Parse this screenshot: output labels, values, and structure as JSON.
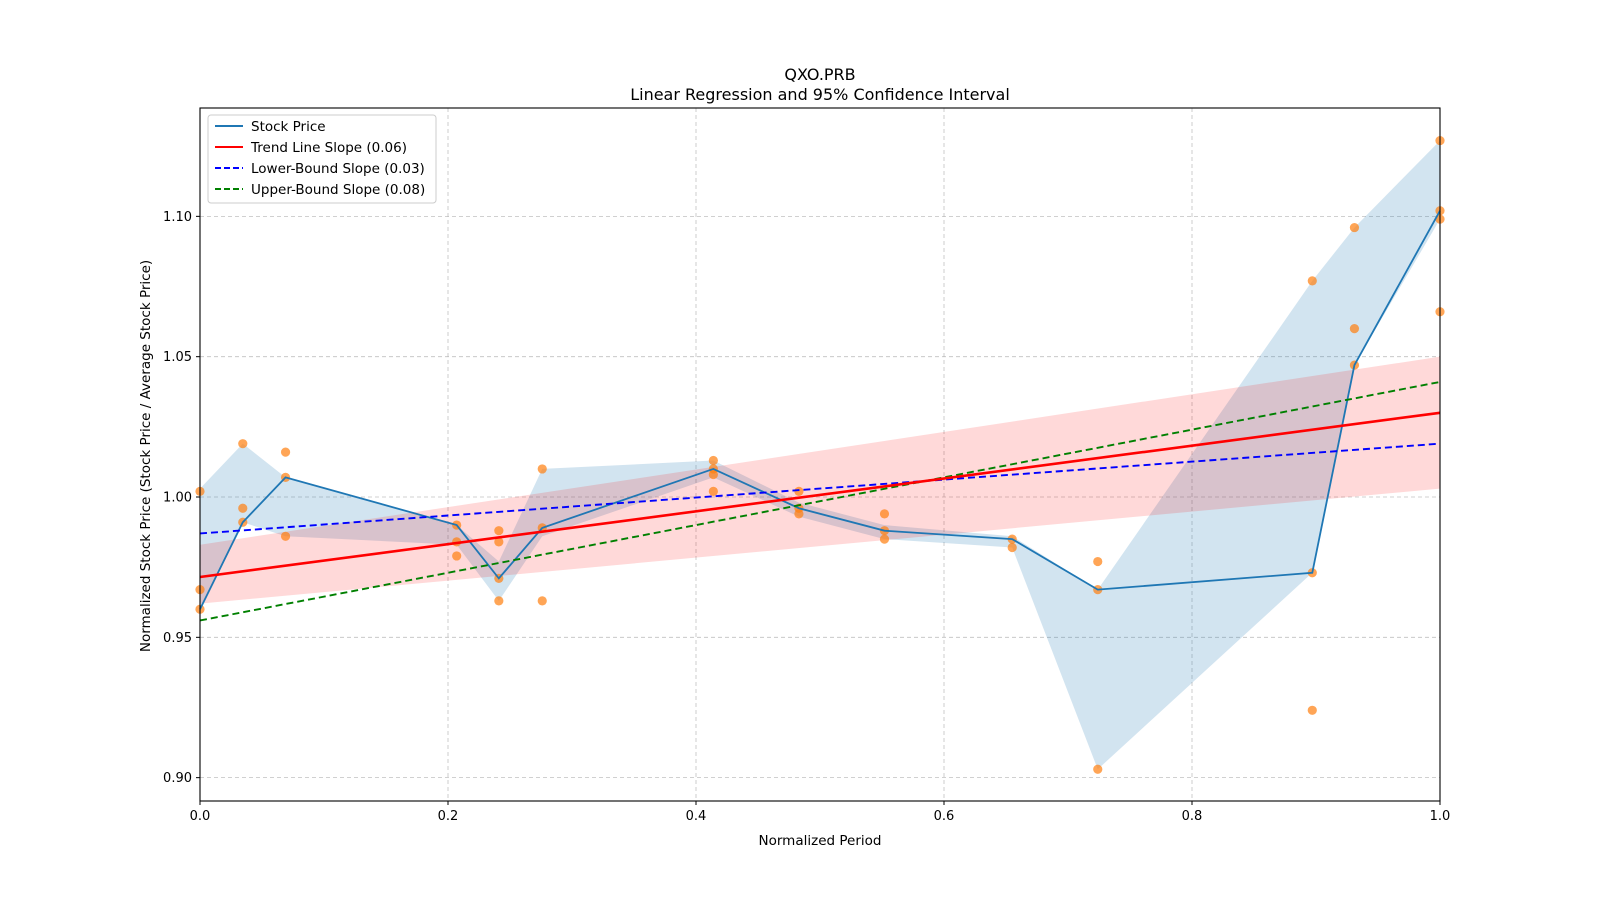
{
  "chart_data": {
    "type": "line",
    "title": "QXO.PRB",
    "subtitle": "Linear Regression and 95% Confidence Interval",
    "xlabel": "Normalized Period",
    "ylabel": "Normalized Stock Price (Stock Price / Average Stock Price)",
    "xlim": [
      0.0,
      1.0
    ],
    "ylim": [
      0.892,
      1.138
    ],
    "xticks": [
      0.0,
      0.2,
      0.4,
      0.6,
      0.8,
      1.0
    ],
    "xtick_labels": [
      "0.0",
      "0.2",
      "0.4",
      "0.6",
      "0.8",
      "1.0"
    ],
    "yticks": [
      0.9,
      0.95,
      1.0,
      1.05,
      1.1
    ],
    "ytick_labels": [
      "0.90",
      "0.95",
      "1.00",
      "1.05",
      "1.10"
    ],
    "grid": true,
    "legend_position": "top-left",
    "legend": [
      {
        "label": "Stock Price",
        "color": "#1f77b4",
        "style": "solid"
      },
      {
        "label": "Trend Line Slope (0.06)",
        "color": "#ff0000",
        "style": "solid"
      },
      {
        "label": "Lower-Bound Slope (0.03)",
        "color": "#0000ff",
        "style": "dashed"
      },
      {
        "label": "Upper-Bound Slope (0.08)",
        "color": "#008000",
        "style": "dashed"
      }
    ],
    "stock_price_line": {
      "x": [
        0.0,
        0.0345,
        0.069,
        0.207,
        0.241,
        0.276,
        0.414,
        0.483,
        0.552,
        0.655,
        0.724,
        0.897,
        0.931,
        1.0
      ],
      "y": [
        0.96,
        0.991,
        1.007,
        0.99,
        0.971,
        0.989,
        1.01,
        0.996,
        0.988,
        0.985,
        0.967,
        0.973,
        1.047,
        1.102
      ],
      "color": "#1f77b4"
    },
    "stock_price_band": {
      "x": [
        0.0,
        0.0345,
        0.069,
        0.207,
        0.241,
        0.276,
        0.414,
        0.483,
        0.552,
        0.655,
        0.724,
        0.897,
        0.931,
        1.0
      ],
      "lower": [
        0.96,
        0.991,
        0.986,
        0.983,
        0.963,
        0.986,
        1.007,
        0.993,
        0.985,
        0.982,
        0.903,
        0.973,
        1.047,
        1.099
      ],
      "upper": [
        1.003,
        1.019,
        1.007,
        0.99,
        0.977,
        1.01,
        1.013,
        0.998,
        0.99,
        0.986,
        0.967,
        1.077,
        1.096,
        1.127
      ],
      "color": "#1f77b4",
      "opacity": 0.2
    },
    "scatter_points": {
      "x": [
        0.0,
        0.0,
        0.0,
        0.0345,
        0.0345,
        0.0345,
        0.069,
        0.069,
        0.069,
        0.207,
        0.207,
        0.207,
        0.241,
        0.241,
        0.241,
        0.241,
        0.276,
        0.276,
        0.276,
        0.414,
        0.414,
        0.414,
        0.414,
        0.483,
        0.483,
        0.483,
        0.552,
        0.552,
        0.552,
        0.655,
        0.655,
        0.724,
        0.724,
        0.724,
        0.897,
        0.897,
        0.897,
        0.931,
        0.931,
        0.931,
        1.0,
        1.0,
        1.0,
        1.0
      ],
      "y": [
        1.002,
        0.967,
        0.96,
        1.019,
        0.996,
        0.991,
        1.016,
        1.007,
        0.986,
        0.99,
        0.984,
        0.979,
        0.988,
        0.984,
        0.971,
        0.963,
        1.01,
        0.989,
        0.963,
        1.013,
        1.01,
        1.008,
        1.002,
        1.002,
        0.996,
        0.994,
        0.994,
        0.988,
        0.985,
        0.985,
        0.982,
        0.977,
        0.967,
        0.903,
        1.077,
        0.973,
        0.924,
        1.096,
        1.06,
        1.047,
        1.127,
        1.102,
        1.099,
        1.066
      ],
      "color": "#ff7f0e"
    },
    "trend_line": {
      "slope": 0.06,
      "x": [
        0.0,
        1.0
      ],
      "y": [
        0.9715,
        1.03
      ],
      "color": "#ff0000"
    },
    "trend_ci_band": {
      "x": [
        0.0,
        1.0
      ],
      "lower": [
        0.962,
        1.003
      ],
      "upper": [
        0.983,
        1.05
      ],
      "color": "#ff0000",
      "opacity": 0.15
    },
    "lower_bound_line": {
      "slope": 0.03,
      "x": [
        0.0,
        1.0
      ],
      "y": [
        0.987,
        1.019
      ],
      "color": "#0000ff"
    },
    "upper_bound_line": {
      "slope": 0.08,
      "x": [
        0.0,
        1.0
      ],
      "y": [
        0.956,
        1.041
      ],
      "color": "#008000"
    }
  }
}
